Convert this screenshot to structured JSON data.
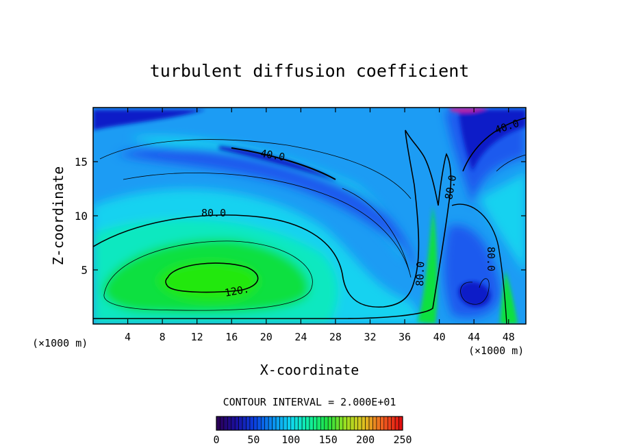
{
  "chart_data": {
    "type": "heatmap",
    "title": "turbulent diffusion coefficient",
    "xlabel": "X-coordinate",
    "ylabel": "Z-coordinate",
    "x_unit_left": "(×1000 m)",
    "x_unit_right": "(×1000 m)",
    "xlim": [
      0,
      50
    ],
    "ylim": [
      0,
      20
    ],
    "x_ticks": [
      "4",
      "8",
      "12",
      "16",
      "20",
      "24",
      "28",
      "32",
      "36",
      "40",
      "44",
      "48"
    ],
    "y_ticks": [
      "5",
      "10",
      "15"
    ],
    "contour_interval_text": "CONTOUR INTERVAL = 2.000E+01",
    "contour_labels": [
      "40.0",
      "80.0",
      "120.",
      "80.0",
      "80.0",
      "80.0",
      "40.0"
    ],
    "colorbar": {
      "range": [
        0,
        250
      ],
      "ticks": [
        "0",
        "50",
        "100",
        "150",
        "200",
        "250"
      ],
      "colors": [
        "#2a0058",
        "#1a10a0",
        "#0a40e0",
        "#0a90f0",
        "#10d8f0",
        "#10f0a0",
        "#20e040",
        "#a0e020",
        "#e0c020",
        "#f06020",
        "#e01010"
      ]
    },
    "field_colors": {
      "dark_blue": "#0a1cc8",
      "blue": "#1a5aee",
      "sky": "#1c9cf4",
      "cyan": "#18d2f0",
      "teal": "#10e8c0",
      "green": "#10e040",
      "bright_green": "#20e810",
      "purple": "#6010a0",
      "magenta": "#c020a0"
    }
  }
}
